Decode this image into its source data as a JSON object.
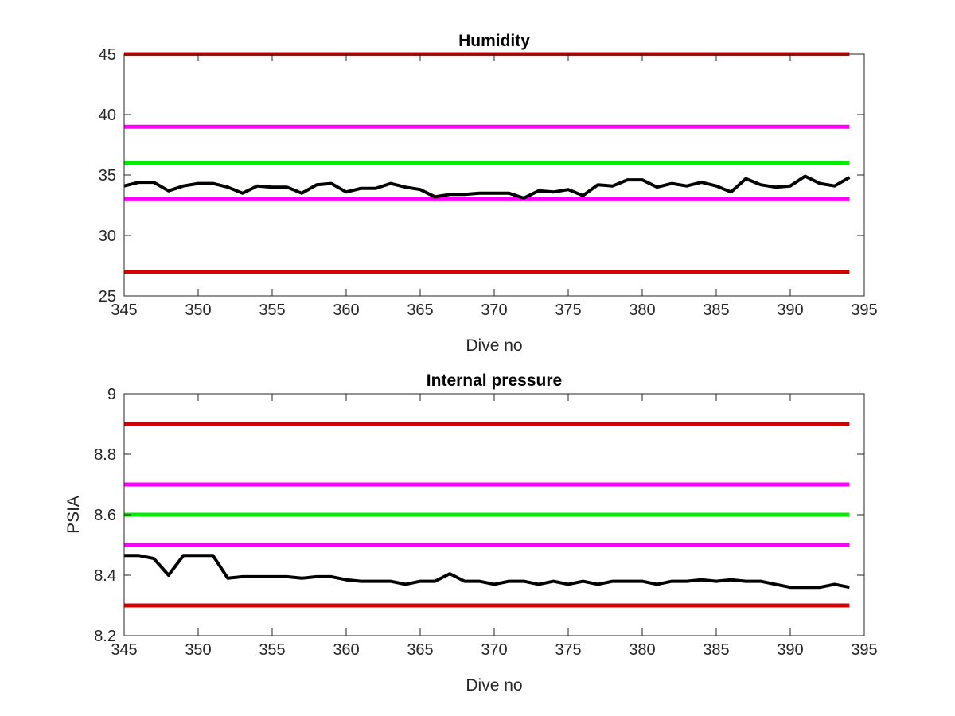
{
  "figure": {
    "background": "#ffffff",
    "axis_color": "#262626"
  },
  "chart_data": [
    {
      "type": "line",
      "title": "Humidity",
      "xlabel": "Dive no",
      "ylabel": "",
      "xlim": [
        345,
        395
      ],
      "ylim": [
        25,
        45
      ],
      "xticks": [
        345,
        350,
        355,
        360,
        365,
        370,
        375,
        380,
        385,
        390,
        395
      ],
      "yticks": [
        25,
        30,
        35,
        40,
        45
      ],
      "grid": false,
      "thresholds": [
        {
          "value": 45,
          "color": "#d40000"
        },
        {
          "value": 39,
          "color": "#ff00ff"
        },
        {
          "value": 36,
          "color": "#00ee00"
        },
        {
          "value": 33,
          "color": "#ff00ff"
        },
        {
          "value": 27,
          "color": "#d40000"
        }
      ],
      "series": [
        {
          "color": "#000000",
          "x": [
            345,
            346,
            347,
            348,
            349,
            350,
            351,
            352,
            353,
            354,
            355,
            356,
            357,
            358,
            359,
            360,
            361,
            362,
            363,
            364,
            365,
            366,
            367,
            368,
            369,
            370,
            371,
            372,
            373,
            374,
            375,
            376,
            377,
            378,
            379,
            380,
            381,
            382,
            383,
            384,
            385,
            386,
            387,
            388,
            389,
            390,
            391,
            392,
            393,
            394
          ],
          "y": [
            34.1,
            34.4,
            34.4,
            33.7,
            34.1,
            34.3,
            34.3,
            34.0,
            33.5,
            34.1,
            34.0,
            34.0,
            33.5,
            34.2,
            34.3,
            33.6,
            33.9,
            33.9,
            34.3,
            34.0,
            33.8,
            33.2,
            33.4,
            33.4,
            33.5,
            33.5,
            33.5,
            33.1,
            33.7,
            33.6,
            33.8,
            33.3,
            34.2,
            34.1,
            34.6,
            34.6,
            34.0,
            34.3,
            34.1,
            34.4,
            34.1,
            33.6,
            34.7,
            34.2,
            34.0,
            34.1,
            34.9,
            34.3,
            34.1,
            34.8
          ]
        }
      ]
    },
    {
      "type": "line",
      "title": "Internal pressure",
      "xlabel": "Dive no",
      "ylabel": "PSIA",
      "xlim": [
        345,
        395
      ],
      "ylim": [
        8.2,
        9.0
      ],
      "xticks": [
        345,
        350,
        355,
        360,
        365,
        370,
        375,
        380,
        385,
        390,
        395
      ],
      "yticks": [
        8.2,
        8.4,
        8.6,
        8.8,
        9.0
      ],
      "ytick_labels": [
        "8.2",
        "8.4",
        "8.6",
        "8.8",
        "9"
      ],
      "grid": false,
      "thresholds": [
        {
          "value": 8.9,
          "color": "#d40000"
        },
        {
          "value": 8.7,
          "color": "#ff00ff"
        },
        {
          "value": 8.6,
          "color": "#00ee00"
        },
        {
          "value": 8.5,
          "color": "#ff00ff"
        },
        {
          "value": 8.3,
          "color": "#d40000"
        }
      ],
      "series": [
        {
          "color": "#000000",
          "x": [
            345,
            346,
            347,
            348,
            349,
            350,
            351,
            352,
            353,
            354,
            355,
            356,
            357,
            358,
            359,
            360,
            361,
            362,
            363,
            364,
            365,
            366,
            367,
            368,
            369,
            370,
            371,
            372,
            373,
            374,
            375,
            376,
            377,
            378,
            379,
            380,
            381,
            382,
            383,
            384,
            385,
            386,
            387,
            388,
            389,
            390,
            391,
            392,
            393,
            394
          ],
          "y": [
            8.465,
            8.465,
            8.455,
            8.4,
            8.465,
            8.465,
            8.465,
            8.39,
            8.395,
            8.395,
            8.395,
            8.395,
            8.39,
            8.395,
            8.395,
            8.385,
            8.38,
            8.38,
            8.38,
            8.37,
            8.38,
            8.38,
            8.405,
            8.38,
            8.38,
            8.37,
            8.38,
            8.38,
            8.37,
            8.38,
            8.37,
            8.38,
            8.37,
            8.38,
            8.38,
            8.38,
            8.37,
            8.38,
            8.38,
            8.385,
            8.38,
            8.385,
            8.38,
            8.38,
            8.37,
            8.36,
            8.36,
            8.36,
            8.37,
            8.36
          ]
        }
      ]
    }
  ]
}
